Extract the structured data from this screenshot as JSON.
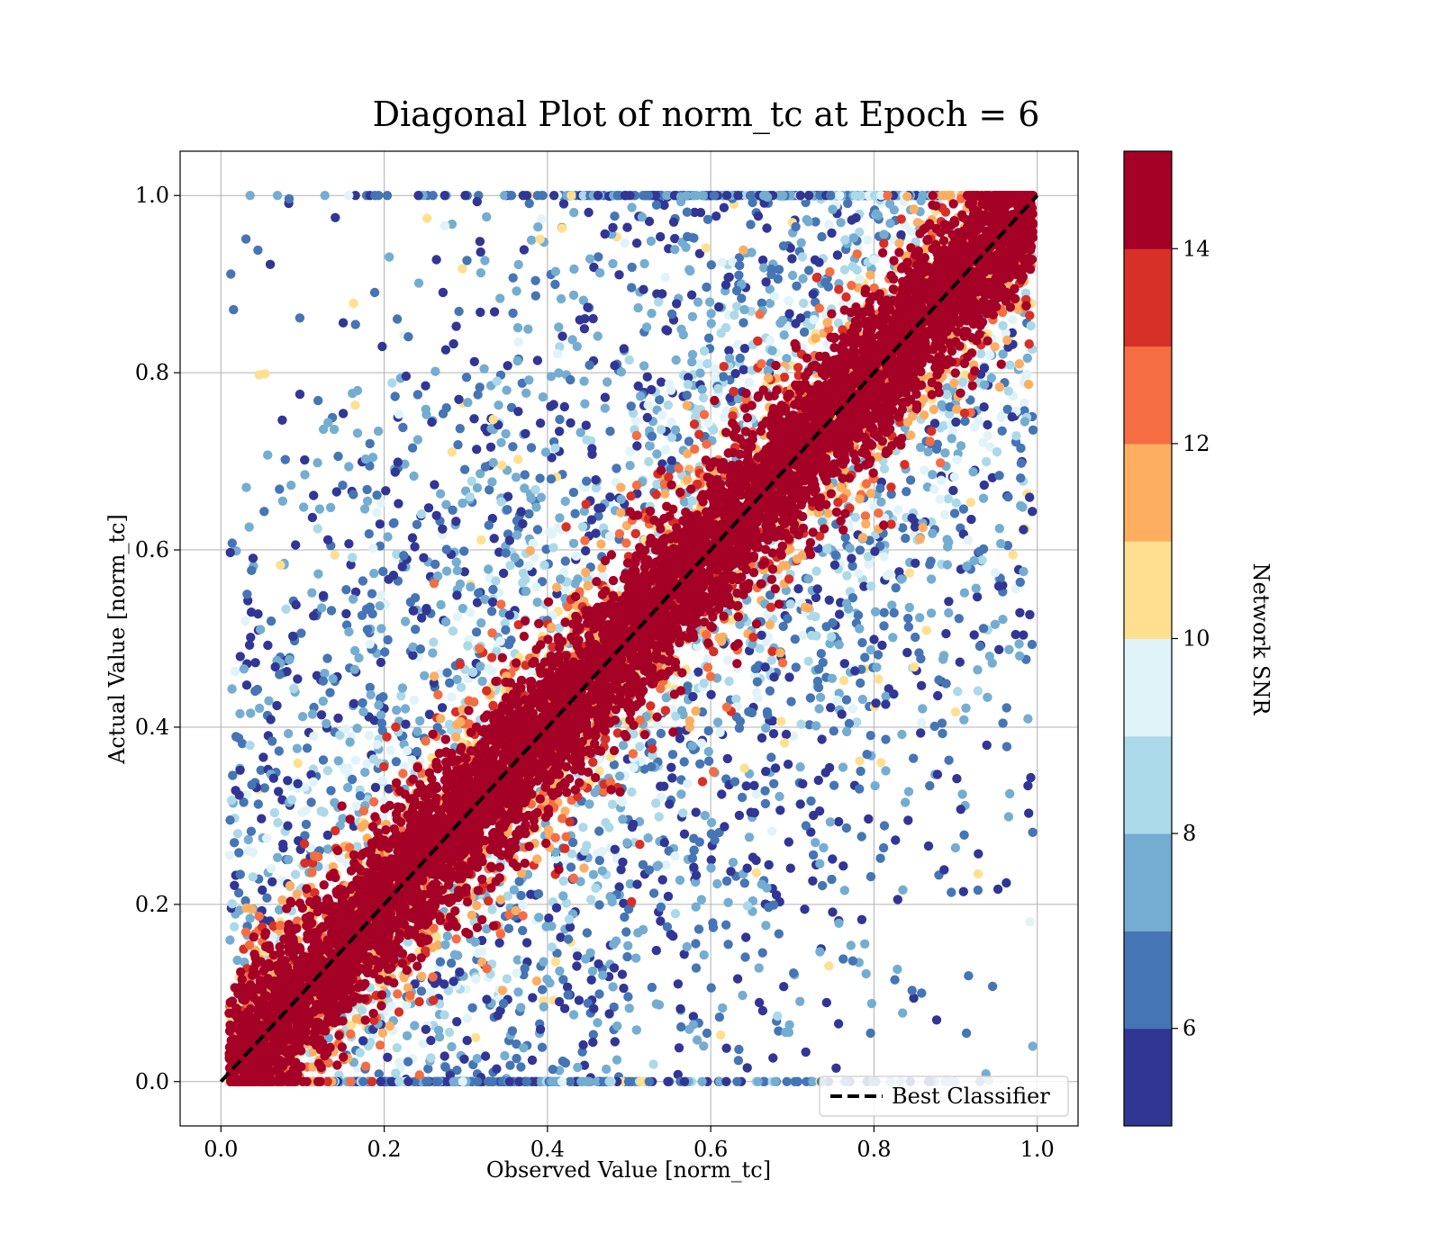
{
  "chart_data": {
    "type": "scatter",
    "title": "Diagonal Plot of norm_tc at Epoch = 6",
    "xlabel": "Observed Value [norm_tc]",
    "ylabel": "Actual Value [norm_tc]",
    "xlim": [
      -0.05,
      1.05
    ],
    "ylim": [
      -0.05,
      1.05
    ],
    "xticks": [
      "0.0",
      "0.2",
      "0.4",
      "0.6",
      "0.8",
      "1.0"
    ],
    "yticks": [
      "0.0",
      "0.2",
      "0.4",
      "0.6",
      "0.8",
      "1.0"
    ],
    "grid": true,
    "legend": {
      "position": "lower-right",
      "label": "Best Classifier"
    },
    "reference_line": {
      "name": "Best Classifier",
      "style": "dashed",
      "color": "#000000",
      "x": [
        0,
        1
      ],
      "y": [
        0,
        1
      ]
    },
    "colorbar": {
      "label": "Network SNR",
      "range": [
        5,
        15
      ],
      "ticks": [
        "6",
        "8",
        "10",
        "12",
        "14"
      ],
      "tick_values": [
        6,
        8,
        10,
        12,
        14
      ],
      "colors": [
        "#313695",
        "#4575b4",
        "#74add1",
        "#abd9e9",
        "#e0f3f8",
        "#fee090",
        "#fdae61",
        "#f46d43",
        "#d73027",
        "#a50026"
      ]
    },
    "points_summary": {
      "high_snr_band": "points with SNR >= 14 cluster tightly along y = x",
      "low_snr_scatter": "points with SNR < 10 spread widely across the unit square"
    }
  }
}
